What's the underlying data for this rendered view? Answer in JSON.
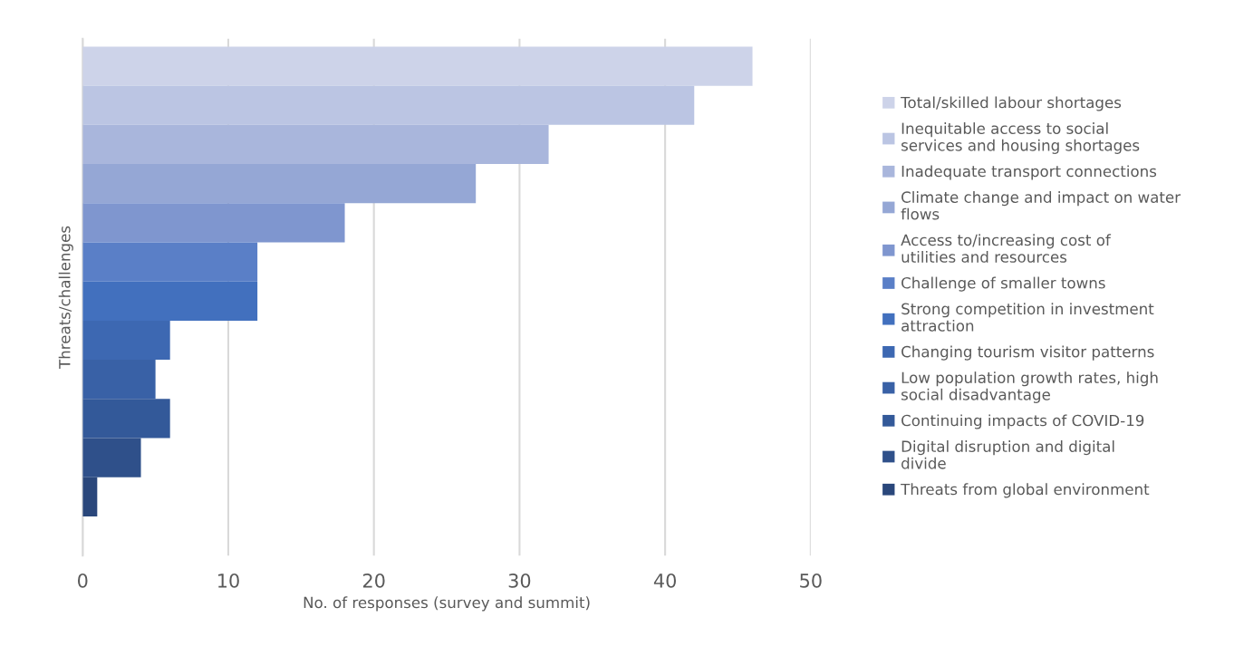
{
  "chart_data": {
    "type": "bar",
    "orientation": "horizontal",
    "categories": [
      null
    ],
    "xlabel": "No. of responses (survey and summit)",
    "ylabel": "Threats/challenges",
    "xlim": [
      0,
      50
    ],
    "xticks": [
      0,
      10,
      20,
      30,
      40,
      50
    ],
    "grid": "x",
    "legend": "right",
    "series": [
      {
        "name": "Total/skilled labour shortages",
        "color": "#cdd3e9",
        "values": [
          46
        ]
      },
      {
        "name": "Inequitable access to social services and housing shortages",
        "color": "#bbc5e3",
        "values": [
          42
        ]
      },
      {
        "name": "Inadequate transport connections",
        "color": "#a9b6dc",
        "values": [
          32
        ]
      },
      {
        "name": "Climate change and impact on water flows",
        "color": "#95a7d5",
        "values": [
          27
        ]
      },
      {
        "name": "Access to/increasing cost of utilities and resources",
        "color": "#7f96cf",
        "values": [
          18
        ]
      },
      {
        "name": "Challenge of smaller towns",
        "color": "#5a7fc7",
        "values": [
          12
        ]
      },
      {
        "name": "Strong competition in investment attraction",
        "color": "#4270be",
        "values": [
          12
        ]
      },
      {
        "name": "Changing tourism visitor patterns",
        "color": "#3d68b2",
        "values": [
          6
        ]
      },
      {
        "name": "Low population growth rates, high social disadvantage",
        "color": "#3961a6",
        "values": [
          5
        ]
      },
      {
        "name": "Continuing impacts of COVID-19",
        "color": "#335999",
        "values": [
          6
        ]
      },
      {
        "name": "Digital disruption and digital divide",
        "color": "#2f508a",
        "values": [
          4
        ]
      },
      {
        "name": "Threats from global environment",
        "color": "#2a477b",
        "values": [
          1
        ]
      }
    ]
  }
}
